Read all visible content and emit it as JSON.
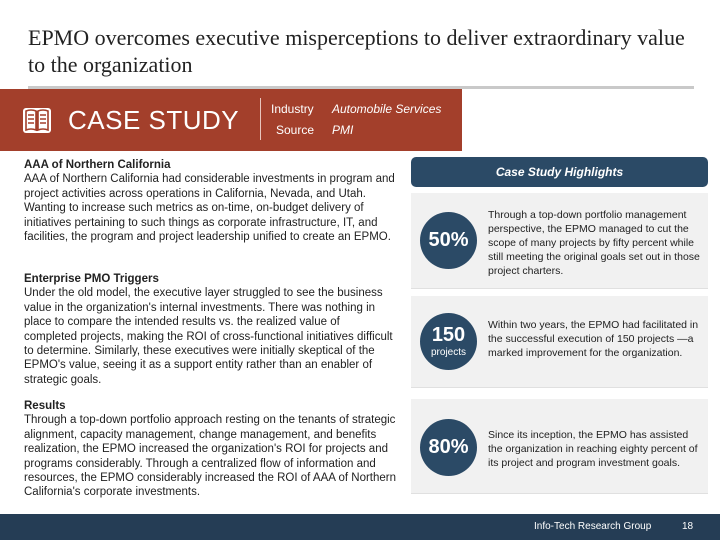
{
  "title": "EPMO overcomes executive misperceptions to deliver extraordinary value to the organization",
  "banner": {
    "label": "CASE STUDY",
    "icon": "open-book-icon",
    "industry_key": "Industry",
    "industry_value": "Automobile Services",
    "source_key": "Source",
    "source_value": "PMI",
    "color": "#a33f2b"
  },
  "sections": [
    {
      "heading": "AAA of Northern California",
      "body": "AAA of Northern California had considerable investments in program and project activities across operations in California, Nevada, and Utah. Wanting to increase such metrics as on-time, on-budget delivery of initiatives pertaining to such things as corporate infrastructure, IT, and facilities, the program and project leadership unified to create an EPMO."
    },
    {
      "heading": "Enterprise PMO Triggers",
      "body": "Under the old model, the executive layer struggled to see the business value in the organization's internal investments. There was nothing in place to compare the intended results vs. the realized value of completed projects, making the ROI of cross-functional initiatives difficult to determine. Similarly, these executives were initially skeptical of the EPMO's value, seeing it as a support entity rather than an enabler of strategic goals."
    },
    {
      "heading": "Results",
      "body": "Through a top-down portfolio approach resting on the tenants of strategic alignment, capacity management, change management, and benefits realization, the EPMO increased the organization's ROI for projects and programs considerably. Through a centralized flow of information and resources, the EPMO considerably increased the ROI of AAA of Northern California's corporate investments."
    }
  ],
  "highlights": {
    "header": "Case Study Highlights",
    "items": [
      {
        "value": "50%",
        "sub": "",
        "text": "Through a top-down portfolio management perspective, the EPMO managed to cut the scope of many projects by fifty percent while still meeting the original goals set out in those project charters."
      },
      {
        "value": "150",
        "sub": "projects",
        "text": "Within two years, the EPMO had facilitated in the successful execution of 150 projects —a marked improvement for the organization."
      },
      {
        "value": "80%",
        "sub": "",
        "text": "Since its inception, the EPMO has assisted the organization in reaching eighty percent of its project and program investment goals."
      }
    ],
    "accent": "#2b4a66"
  },
  "footer": {
    "org": "Info-Tech Research Group",
    "page": "18",
    "color": "#253d55"
  }
}
